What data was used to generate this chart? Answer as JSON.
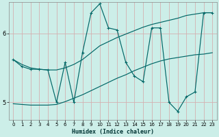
{
  "xlabel": "Humidex (Indice chaleur)",
  "bg_color": "#cceee8",
  "line_color": "#006666",
  "grid_color_v": "#d4b0b0",
  "grid_color_h": "#d4b0b0",
  "xlim": [
    -0.5,
    23.5
  ],
  "ylim": [
    4.75,
    6.45
  ],
  "xticks": [
    0,
    1,
    2,
    3,
    4,
    5,
    6,
    7,
    8,
    9,
    10,
    11,
    12,
    13,
    14,
    15,
    16,
    17,
    18,
    19,
    20,
    21,
    22,
    23
  ],
  "yticks": [
    5,
    6
  ],
  "line_upper_x": [
    0,
    1,
    2,
    3,
    4,
    5,
    6,
    7,
    8,
    9,
    10,
    11,
    12,
    13,
    14,
    15,
    16,
    17,
    18,
    19,
    20,
    21,
    22,
    23
  ],
  "line_upper_y": [
    5.62,
    5.55,
    5.5,
    5.48,
    5.47,
    5.47,
    5.5,
    5.55,
    5.62,
    5.72,
    5.82,
    5.88,
    5.94,
    5.99,
    6.04,
    6.09,
    6.13,
    6.16,
    6.19,
    6.22,
    6.26,
    6.28,
    6.3,
    6.3
  ],
  "line_lower_x": [
    0,
    1,
    2,
    3,
    4,
    5,
    6,
    7,
    8,
    9,
    10,
    11,
    12,
    13,
    14,
    15,
    16,
    17,
    18,
    19,
    20,
    21,
    22,
    23
  ],
  "line_lower_y": [
    4.98,
    4.97,
    4.96,
    4.96,
    4.96,
    4.97,
    5.01,
    5.06,
    5.11,
    5.17,
    5.23,
    5.29,
    5.35,
    5.4,
    5.46,
    5.51,
    5.56,
    5.6,
    5.63,
    5.65,
    5.67,
    5.69,
    5.7,
    5.72
  ],
  "line_volatile_x": [
    0,
    1,
    2,
    3,
    4,
    5,
    6,
    7,
    8,
    9,
    10,
    11,
    12,
    13,
    14,
    15,
    16,
    17,
    18,
    19,
    20,
    21,
    22,
    23
  ],
  "line_volatile_y": [
    5.62,
    5.52,
    5.48,
    5.48,
    5.47,
    5.0,
    5.58,
    5.0,
    5.72,
    6.3,
    6.43,
    6.08,
    6.05,
    5.58,
    5.38,
    5.3,
    6.08,
    6.08,
    5.0,
    4.87,
    5.08,
    5.15,
    6.3,
    6.3
  ]
}
